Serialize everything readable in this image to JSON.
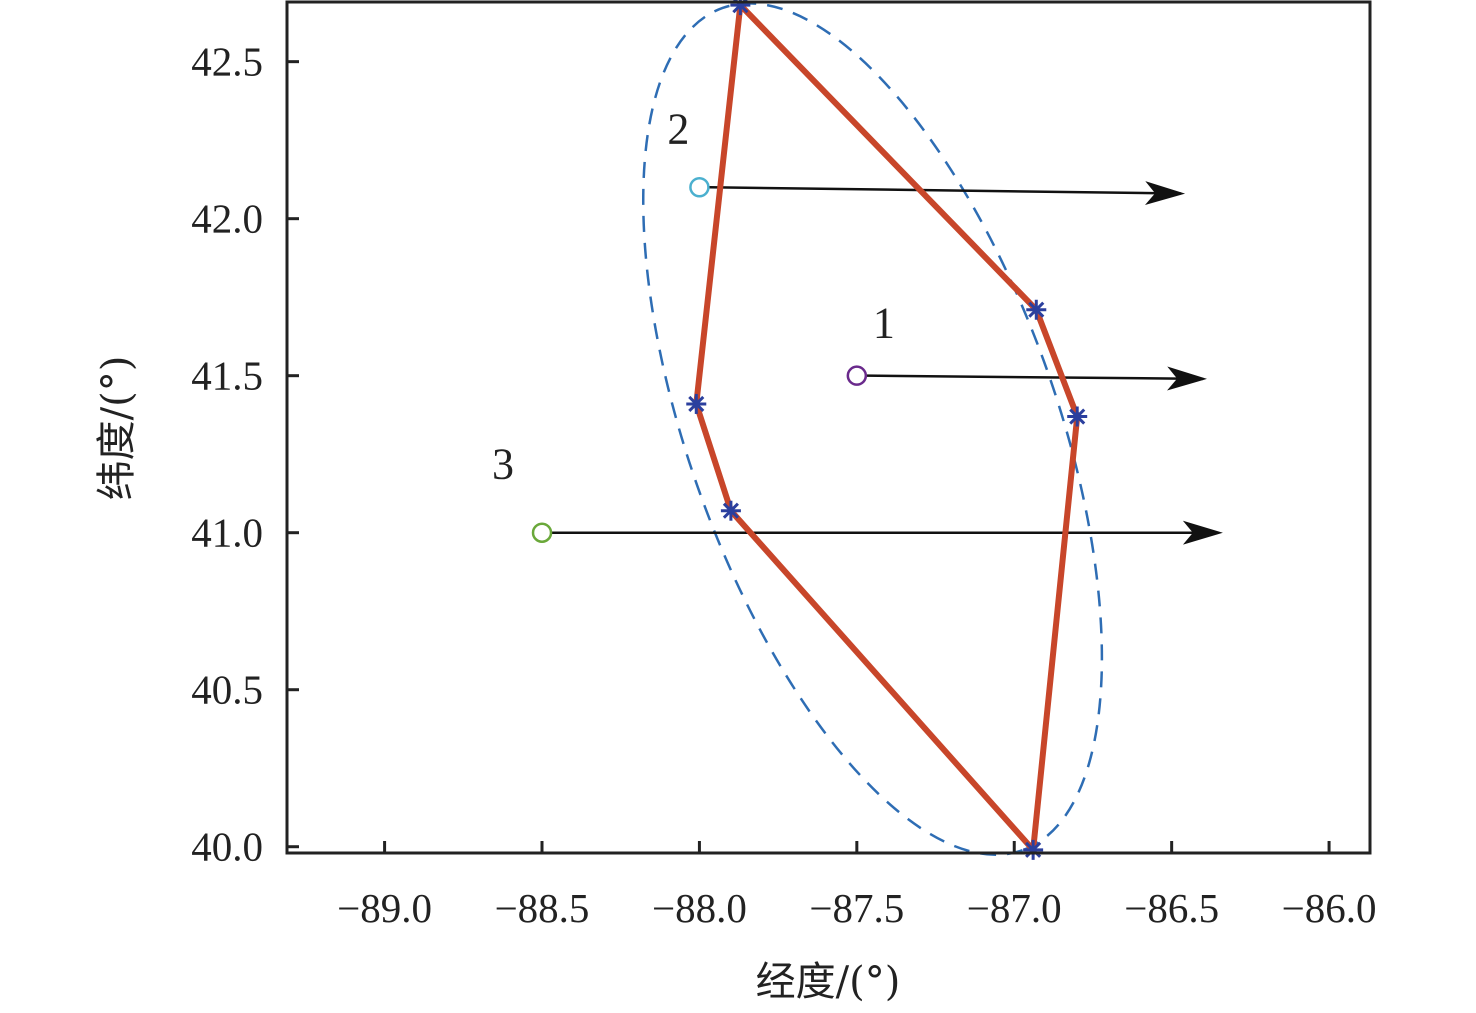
{
  "chart_data": {
    "type": "scatter",
    "title": "",
    "xlabel": "经度/(°)",
    "ylabel": "纬度/(°)",
    "xlim": [
      -89.31,
      -85.87
    ],
    "ylim": [
      39.98,
      42.69
    ],
    "grid": false,
    "xticks": [
      -89.0,
      -88.5,
      -88.0,
      -87.5,
      -87.0,
      -86.5,
      -86.0
    ],
    "xtick_labels": [
      "−89.0",
      "−88.5",
      "−88.0",
      "−87.5",
      "−87.0",
      "−86.5",
      "−86.0"
    ],
    "yticks": [
      40.0,
      40.5,
      41.0,
      41.5,
      42.0,
      42.5
    ],
    "ytick_labels": [
      "40.0",
      "40.5",
      "41.0",
      "41.5",
      "42.0",
      "42.5"
    ],
    "polygon": {
      "name": "boundary",
      "color": "#c8462a",
      "marker_color": "#2b3f9e",
      "vertices": [
        [
          -87.87,
          42.68
        ],
        [
          -86.93,
          41.71
        ],
        [
          -86.8,
          41.37
        ],
        [
          -86.94,
          39.99
        ],
        [
          -87.9,
          41.07
        ],
        [
          -88.01,
          41.41
        ]
      ]
    },
    "ellipse": {
      "name": "confidence-ellipse",
      "color": "#2e6db4",
      "center": [
        -87.45,
        41.33
      ],
      "semi_major": 1.42,
      "semi_minor": 0.585,
      "angle_deg": -70.4
    },
    "points": [
      {
        "label": "1",
        "x": -87.5,
        "y": 41.5,
        "color": "#6a2a8c",
        "arrow_to": [
          -86.4,
          41.49
        ]
      },
      {
        "label": "2",
        "x": -88.0,
        "y": 42.1,
        "color": "#4bb0cf",
        "arrow_to": [
          -86.47,
          42.08
        ]
      },
      {
        "label": "3",
        "x": -88.5,
        "y": 41.0,
        "color": "#6aa83a",
        "arrow_to": [
          -86.35,
          41.0
        ]
      }
    ]
  }
}
